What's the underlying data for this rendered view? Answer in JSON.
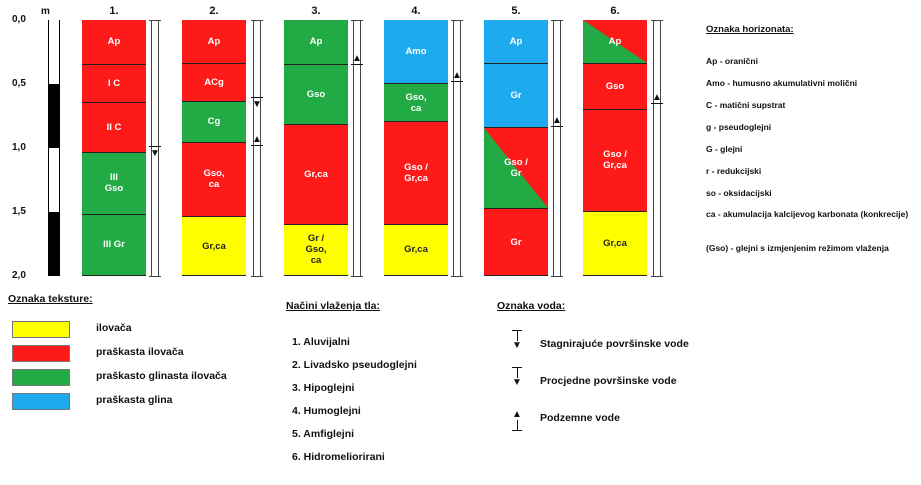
{
  "scale": {
    "unit_label": "m",
    "ticks": [
      "0,0",
      "0,5",
      "1,0",
      "1,5",
      "2,0"
    ],
    "bar_segments": [
      {
        "from": 0.0,
        "to": 0.5,
        "color": "#ffffff"
      },
      {
        "from": 0.5,
        "to": 1.0,
        "color": "#000000"
      },
      {
        "from": 1.0,
        "to": 1.5,
        "color": "#ffffff"
      },
      {
        "from": 1.5,
        "to": 2.0,
        "color": "#000000"
      }
    ]
  },
  "profiles": [
    {
      "title": "1.",
      "marker": {
        "type": "down",
        "depth": 1.0
      },
      "segments": [
        {
          "label": "Ap",
          "from": 0.0,
          "to": 0.35,
          "texture": "praskasta_ilovaca"
        },
        {
          "label": "I C",
          "from": 0.35,
          "to": 0.65,
          "texture": "praskasta_ilovaca"
        },
        {
          "label": "II C",
          "from": 0.65,
          "to": 1.04,
          "texture": "praskasta_ilovaca"
        },
        {
          "label": "III\nGso",
          "from": 1.04,
          "to": 1.52,
          "texture": "praskasto_glinasta"
        },
        {
          "label": "III Gr",
          "from": 1.52,
          "to": 2.0,
          "texture": "praskasto_glinasta"
        }
      ]
    },
    {
      "title": "2.",
      "marker": {
        "type": "down",
        "depth": 0.62
      },
      "marker2": {
        "type": "up",
        "depth": 0.93
      },
      "segments": [
        {
          "label": "Ap",
          "from": 0.0,
          "to": 0.34,
          "texture": "praskasta_ilovaca"
        },
        {
          "label": "ACg",
          "from": 0.34,
          "to": 0.64,
          "texture": "praskasta_ilovaca"
        },
        {
          "label": "Cg",
          "from": 0.64,
          "to": 0.96,
          "texture": "praskasto_glinasta"
        },
        {
          "label": "Gso,\nca",
          "from": 0.96,
          "to": 1.54,
          "texture": "praskasta_ilovaca"
        },
        {
          "label": "Gr,ca",
          "from": 1.54,
          "to": 2.0,
          "texture": "ilovaca"
        }
      ]
    },
    {
      "title": "3.",
      "marker": {
        "type": "up",
        "depth": 0.3
      },
      "segments": [
        {
          "label": "Ap",
          "from": 0.0,
          "to": 0.35,
          "texture": "praskasto_glinasta"
        },
        {
          "label": "Gso",
          "from": 0.35,
          "to": 0.82,
          "texture": "praskasto_glinasta"
        },
        {
          "label": "Gr,ca",
          "from": 0.82,
          "to": 1.6,
          "texture": "praskasta_ilovaca"
        },
        {
          "label": "Gr /\nGso,\nca",
          "from": 1.6,
          "to": 2.0,
          "texture": "ilovaca"
        }
      ]
    },
    {
      "title": "4.",
      "marker": {
        "type": "up",
        "depth": 0.43
      },
      "segments": [
        {
          "label": "Amo",
          "from": 0.0,
          "to": 0.5,
          "texture": "praskasta_glina"
        },
        {
          "label": "Gso,\nca",
          "from": 0.5,
          "to": 0.8,
          "texture": "praskasto_glinasta"
        },
        {
          "label": "Gso /\nGr,ca",
          "from": 0.8,
          "to": 1.6,
          "texture": "praskasta_ilovaca"
        },
        {
          "label": "Gr,ca",
          "from": 1.6,
          "to": 2.0,
          "texture": "ilovaca"
        }
      ]
    },
    {
      "title": "5.",
      "marker": {
        "type": "up",
        "depth": 0.78
      },
      "segments": [
        {
          "label": "Ap",
          "from": 0.0,
          "to": 0.34,
          "texture": "praskasta_glina"
        },
        {
          "label": "Gr",
          "from": 0.34,
          "to": 0.84,
          "texture": "praskasta_glina"
        },
        {
          "label": "Gso /\nGr",
          "from": 0.84,
          "to": 1.48,
          "texture": "diag_5"
        },
        {
          "label": "Gr",
          "from": 1.48,
          "to": 2.0,
          "texture": "praskasta_ilovaca"
        }
      ]
    },
    {
      "title": "6.",
      "marker": {
        "type": "up",
        "depth": 0.6
      },
      "segments": [
        {
          "label": "Ap",
          "from": 0.0,
          "to": 0.34,
          "texture": "diag_6"
        },
        {
          "label": "Gso",
          "from": 0.34,
          "to": 0.7,
          "texture": "praskasta_ilovaca"
        },
        {
          "label": "Gso /\nGr,ca",
          "from": 0.7,
          "to": 1.5,
          "texture": "praskasta_ilovaca"
        },
        {
          "label": "Gr,ca",
          "from": 1.5,
          "to": 2.0,
          "texture": "ilovaca"
        }
      ]
    }
  ],
  "colors": {
    "ilovaca": "#ffff00",
    "praskasta_ilovaca": "#ff1a1a",
    "praskasto_glinasta": "#22aa44",
    "praskasta_glina": "#1eaaee"
  },
  "horizon_legend": {
    "title": "Oznaka horizonata:",
    "items": [
      "Ap - oranični",
      "Amo - humusno akumulativni molični",
      "C - matični supstrat",
      "g - pseudoglejni",
      "G - glejni",
      "r - redukcijski",
      "so - oksidacijski",
      "ca - akumulacija kalcijevog karbonata (konkrecije)",
      "(Gso) - glejni s izmjenjenim režimom vlaženja"
    ]
  },
  "texture_legend": {
    "title": "Oznaka teksture:",
    "items": [
      {
        "label": "ilovača",
        "color": "#ffff00"
      },
      {
        "label": "praškasta ilovača",
        "color": "#ff1a1a"
      },
      {
        "label": "praškasto glinasta ilovača",
        "color": "#22aa44"
      },
      {
        "label": "praškasta glina",
        "color": "#1eaaee"
      }
    ]
  },
  "wetting_legend": {
    "title": "Načini vlaženja tla:",
    "items": [
      "1. Aluvijalni",
      "2. Livadsko pseudoglejni",
      "3. Hipoglejni",
      "4. Humoglejni",
      "5. Amfiglejni",
      "6. Hidromeliorirani"
    ]
  },
  "water_legend": {
    "title": "Oznaka voda:",
    "items": [
      {
        "label": "Stagnirajuće površinske vode",
        "icon": "arrow-down-icon"
      },
      {
        "label": "Procjedne površinske vode",
        "icon": "arrow-down-icon"
      },
      {
        "label": "Podzemne vode",
        "icon": "arrow-up-icon"
      }
    ]
  }
}
